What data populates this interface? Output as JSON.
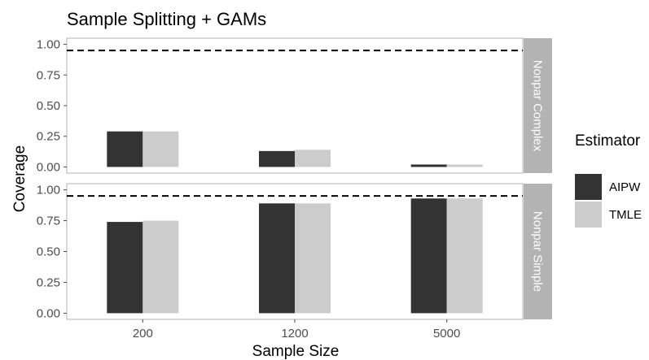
{
  "chart_data": {
    "type": "bar",
    "title": "Sample Splitting + GAMs",
    "xlabel": "Sample Size",
    "ylabel": "Coverage",
    "categories": [
      "200",
      "1200",
      "5000"
    ],
    "ylim": [
      -0.05,
      1.05
    ],
    "yticks": [
      "0.00",
      "0.25",
      "0.50",
      "0.75",
      "1.00"
    ],
    "reference_line": 0.95,
    "grid": false,
    "legend": {
      "title": "Estimator",
      "position": "right",
      "items": [
        {
          "name": "AIPW",
          "color": "#333333"
        },
        {
          "name": "TMLE",
          "color": "#cccccc"
        }
      ]
    },
    "facets": [
      {
        "label": "Nonpar Complex",
        "series": [
          {
            "name": "AIPW",
            "values": [
              0.29,
              0.13,
              0.02
            ]
          },
          {
            "name": "TMLE",
            "values": [
              0.29,
              0.14,
              0.02
            ]
          }
        ]
      },
      {
        "label": "Nonpar Simple",
        "series": [
          {
            "name": "AIPW",
            "values": [
              0.74,
              0.89,
              0.93
            ]
          },
          {
            "name": "TMLE",
            "values": [
              0.75,
              0.89,
              0.93
            ]
          }
        ]
      }
    ]
  },
  "colors": {
    "strip_bg": "#b3b3b3",
    "strip_text": "#ffffff",
    "panel_border": "#b3b3b3",
    "axis_text": "#4d4d4d",
    "title_text": "#000000"
  }
}
